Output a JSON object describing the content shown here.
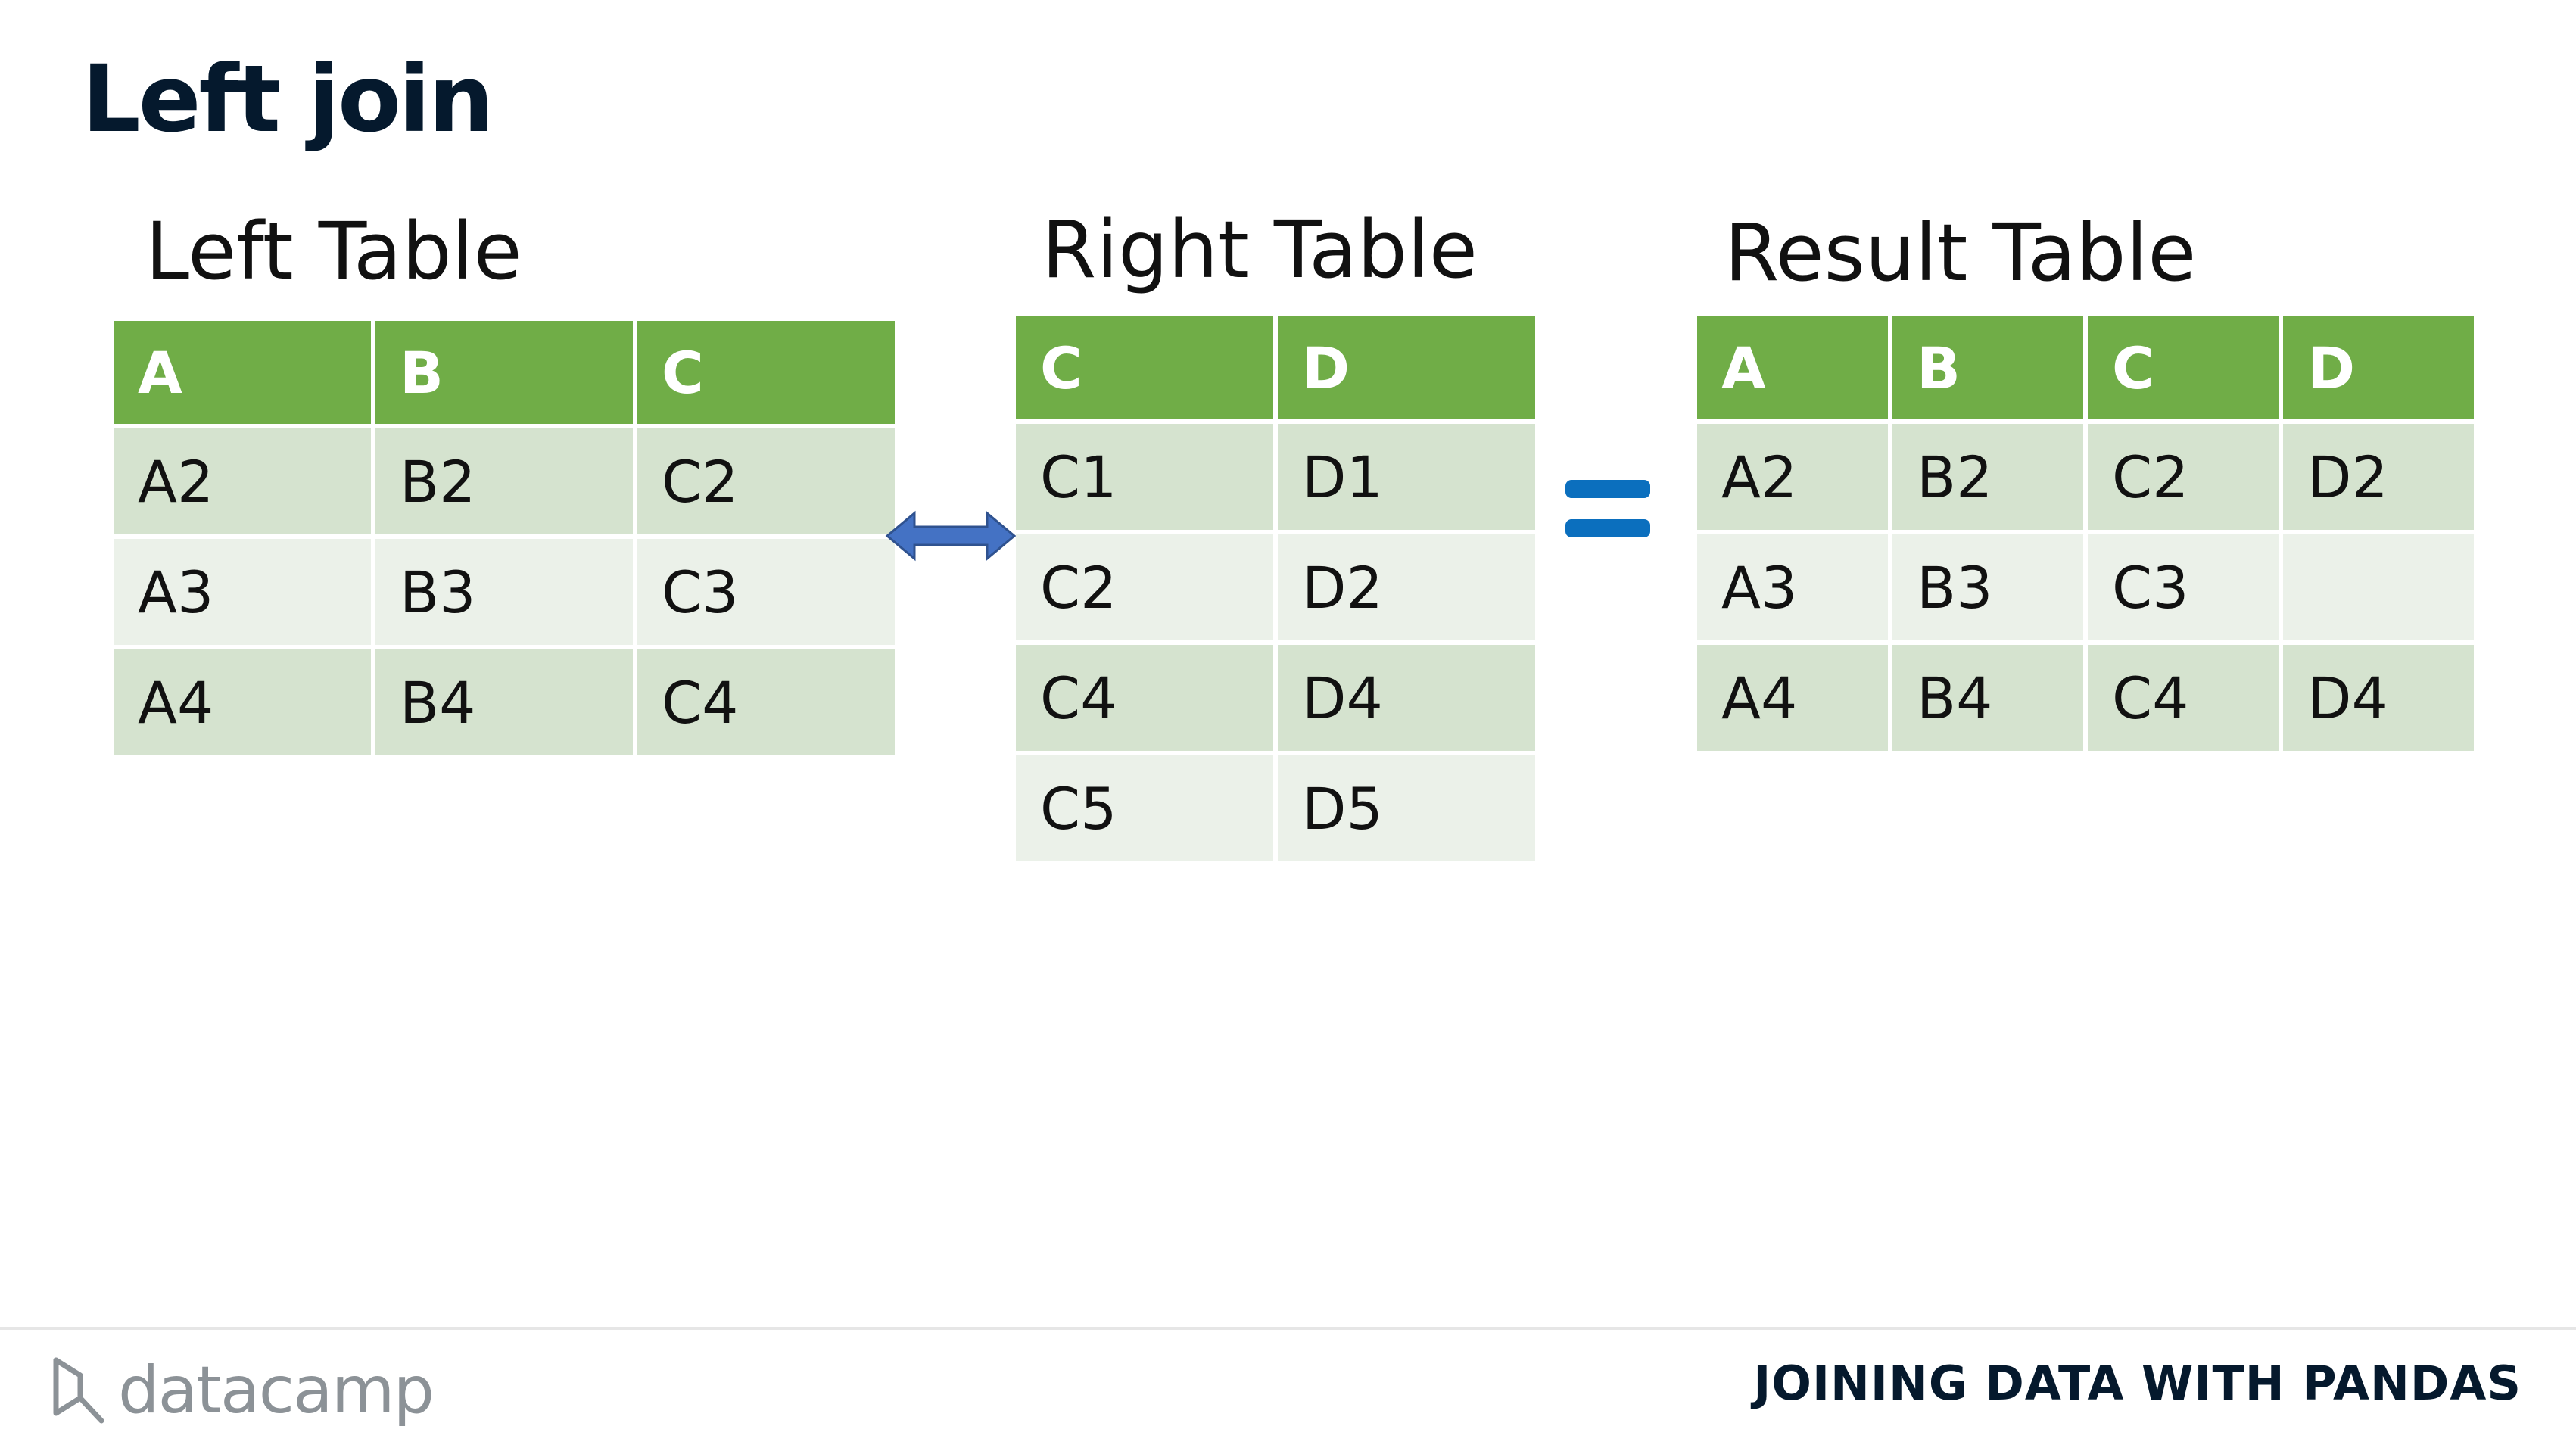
{
  "slide": {
    "title": "Left join"
  },
  "left_table": {
    "caption": "Left Table",
    "headers": [
      "A",
      "B",
      "C"
    ],
    "rows": [
      [
        "A2",
        "B2",
        "C2"
      ],
      [
        "A3",
        "B3",
        "C3"
      ],
      [
        "A4",
        "B4",
        "C4"
      ]
    ]
  },
  "right_table": {
    "caption": "Right Table",
    "headers": [
      "C",
      "D"
    ],
    "rows": [
      [
        "C1",
        "D1"
      ],
      [
        "C2",
        "D2"
      ],
      [
        "C4",
        "D4"
      ],
      [
        "C5",
        "D5"
      ]
    ]
  },
  "result_table": {
    "caption": "Result Table",
    "headers": [
      "A",
      "B",
      "C",
      "D"
    ],
    "rows": [
      [
        "A2",
        "B2",
        "C2",
        "D2"
      ],
      [
        "A3",
        "B3",
        "C3",
        ""
      ],
      [
        "A4",
        "B4",
        "C4",
        "D4"
      ]
    ]
  },
  "symbols": {
    "join_arrow": "double-arrow-icon",
    "equals": "equals-icon"
  },
  "colors": {
    "header": "#70ad47",
    "row_dark": "#d5e3cf",
    "row_light": "#ebf1e9",
    "arrow": "#4472c4",
    "equals": "#0b6fbe",
    "title": "#05192d"
  },
  "footer": {
    "brand": "datacamp",
    "course": "JOINING DATA WITH PANDAS"
  }
}
